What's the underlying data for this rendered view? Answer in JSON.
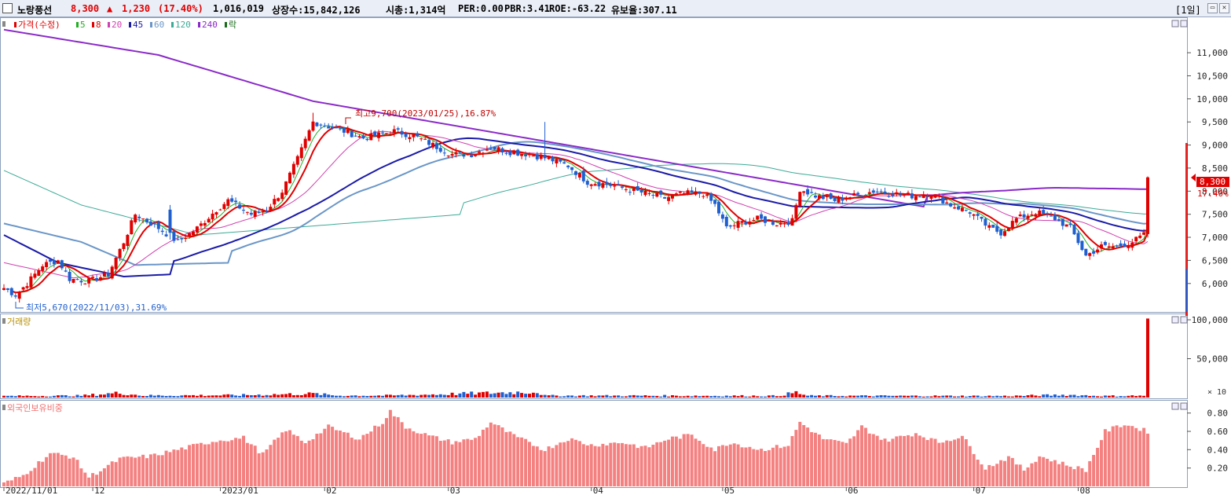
{
  "header": {
    "stock_name": "노랑풍선",
    "price": "8,300",
    "change_arrow": "▲",
    "change": "1,230",
    "change_pct": "(17.40%)",
    "volume": "1,016,019",
    "listed_shares": "상장수:15,842,126",
    "market_cap": "시총:1,314억",
    "per": "PER:0.00",
    "pbr": "PBR:3.41",
    "roe": "ROE:-63.22",
    "float_ratio": "유보율:307.11",
    "period": "[1일]",
    "minimize_glyph": "▭",
    "close_glyph": "✕"
  },
  "colors": {
    "up": "#e00000",
    "down": "#1f5fd0",
    "ma5": "#22b022",
    "ma8": "#e00000",
    "ma20": "#d040b0",
    "ma45": "#1a1aa8",
    "ma60": "#6a96c8",
    "ma120": "#3caa96",
    "ma240": "#8a2ac8",
    "foreign": "#f48080"
  },
  "price_panel": {
    "legend": [
      {
        "label": "가격(수정)",
        "color": "#e00000"
      },
      {
        "label": "5",
        "color": "#22b022"
      },
      {
        "label": "8",
        "color": "#e00000"
      },
      {
        "label": "20",
        "color": "#d040b0"
      },
      {
        "label": "45",
        "color": "#1a1aa8"
      },
      {
        "label": "60",
        "color": "#6a96c8"
      },
      {
        "label": "120",
        "color": "#3caa96"
      },
      {
        "label": "240",
        "color": "#8a2ac8"
      },
      {
        "label": "락",
        "color": "#1a6a1a"
      }
    ],
    "y_ticks": [
      "11,000",
      "10,500",
      "10,000",
      "9,500",
      "9,000",
      "8,500",
      "8,000",
      "7,500",
      "7,000",
      "6,500",
      "6,000"
    ],
    "high_annotation": "최고9,700(2023/01/25),16.87%",
    "low_annotation": "최저5,670(2022/11/03),31.69%",
    "price_tag": "8,300",
    "pct_tag": "17.40%"
  },
  "volume_panel": {
    "label": "거래량",
    "y_ticks": [
      "100,000",
      "50,000"
    ],
    "unit": "× 10"
  },
  "foreign_panel": {
    "label": "외국인보유비중",
    "y_ticks": [
      "0.80",
      "0.60",
      "0.40",
      "0.20"
    ]
  },
  "x_axis": [
    "2022/11/01",
    "12",
    "2023/01",
    "02",
    "03",
    "04",
    "05",
    "06",
    "07",
    "08"
  ],
  "chart_data": {
    "type": "candlestick",
    "anchors": {
      "close": [
        [
          0,
          5900
        ],
        [
          3,
          5750
        ],
        [
          6,
          6000
        ],
        [
          10,
          6400
        ],
        [
          14,
          6500
        ],
        [
          17,
          6100
        ],
        [
          22,
          6050
        ],
        [
          27,
          6200
        ],
        [
          31,
          6900
        ],
        [
          34,
          7500
        ],
        [
          40,
          7200
        ],
        [
          45,
          6900
        ],
        [
          50,
          7200
        ],
        [
          55,
          7600
        ],
        [
          58,
          7800
        ],
        [
          64,
          7500
        ],
        [
          68,
          7600
        ],
        [
          72,
          8000
        ],
        [
          76,
          8700
        ],
        [
          80,
          9500
        ],
        [
          84,
          9400
        ],
        [
          88,
          9300
        ],
        [
          93,
          9150
        ],
        [
          96,
          9200
        ],
        [
          101,
          9300
        ],
        [
          106,
          9200
        ],
        [
          111,
          9000
        ],
        [
          116,
          8800
        ],
        [
          121,
          8800
        ],
        [
          126,
          8950
        ],
        [
          131,
          8850
        ],
        [
          136,
          8800
        ],
        [
          141,
          8700
        ],
        [
          146,
          8550
        ],
        [
          151,
          8200
        ],
        [
          156,
          8150
        ],
        [
          161,
          8050
        ],
        [
          166,
          7950
        ],
        [
          171,
          7850
        ],
        [
          176,
          7950
        ],
        [
          181,
          7950
        ],
        [
          184,
          7700
        ],
        [
          187,
          7200
        ],
        [
          190,
          7300
        ],
        [
          195,
          7400
        ],
        [
          200,
          7300
        ],
        [
          204,
          7350
        ],
        [
          206,
          8050
        ],
        [
          210,
          7900
        ],
        [
          215,
          7800
        ],
        [
          220,
          7900
        ],
        [
          225,
          8000
        ],
        [
          230,
          7950
        ],
        [
          235,
          7900
        ],
        [
          240,
          7950
        ],
        [
          245,
          7700
        ],
        [
          250,
          7550
        ],
        [
          255,
          7200
        ],
        [
          258,
          7100
        ],
        [
          262,
          7400
        ],
        [
          267,
          7550
        ],
        [
          272,
          7400
        ],
        [
          276,
          7200
        ],
        [
          280,
          6600
        ],
        [
          284,
          6800
        ],
        [
          288,
          6800
        ],
        [
          292,
          6900
        ],
        [
          295,
          7050
        ],
        [
          296,
          8300
        ]
      ],
      "volume": [
        [
          0,
          2000
        ],
        [
          20,
          2500
        ],
        [
          30,
          6000
        ],
        [
          36,
          2600
        ],
        [
          60,
          3000
        ],
        [
          80,
          5000
        ],
        [
          86,
          2600
        ],
        [
          100,
          2600
        ],
        [
          138,
          7500
        ],
        [
          140,
          2500
        ],
        [
          200,
          2200
        ],
        [
          205,
          6500
        ],
        [
          208,
          2300
        ],
        [
          260,
          2000
        ],
        [
          275,
          3500
        ],
        [
          285,
          2000
        ],
        [
          295,
          2500
        ],
        [
          296,
          101600
        ]
      ],
      "foreign": [
        [
          0,
          0.03
        ],
        [
          5,
          0.12
        ],
        [
          12,
          0.36
        ],
        [
          18,
          0.32
        ],
        [
          22,
          0.1
        ],
        [
          30,
          0.3
        ],
        [
          38,
          0.33
        ],
        [
          47,
          0.42
        ],
        [
          55,
          0.5
        ],
        [
          62,
          0.53
        ],
        [
          67,
          0.35
        ],
        [
          73,
          0.62
        ],
        [
          78,
          0.48
        ],
        [
          84,
          0.65
        ],
        [
          92,
          0.52
        ],
        [
          98,
          0.7
        ],
        [
          100,
          0.82
        ],
        [
          104,
          0.65
        ],
        [
          110,
          0.55
        ],
        [
          116,
          0.48
        ],
        [
          122,
          0.52
        ],
        [
          126,
          0.7
        ],
        [
          132,
          0.55
        ],
        [
          140,
          0.4
        ],
        [
          146,
          0.52
        ],
        [
          152,
          0.45
        ],
        [
          160,
          0.48
        ],
        [
          166,
          0.42
        ],
        [
          172,
          0.52
        ],
        [
          178,
          0.56
        ],
        [
          184,
          0.4
        ],
        [
          188,
          0.48
        ],
        [
          196,
          0.4
        ],
        [
          203,
          0.45
        ],
        [
          206,
          0.7
        ],
        [
          212,
          0.52
        ],
        [
          218,
          0.46
        ],
        [
          222,
          0.65
        ],
        [
          228,
          0.5
        ],
        [
          236,
          0.58
        ],
        [
          242,
          0.48
        ],
        [
          248,
          0.55
        ],
        [
          254,
          0.2
        ],
        [
          260,
          0.32
        ],
        [
          264,
          0.18
        ],
        [
          268,
          0.33
        ],
        [
          276,
          0.22
        ],
        [
          280,
          0.18
        ],
        [
          285,
          0.6
        ],
        [
          290,
          0.68
        ],
        [
          296,
          0.6
        ]
      ]
    },
    "ma_start": {
      "ma5": 4,
      "ma8": 7,
      "ma20": 19,
      "ma45": 44,
      "ma60": 59,
      "ma120": 119,
      "ma240": 239
    },
    "pre_history": {
      "ma45": [
        [
          0,
          7050
        ],
        [
          14,
          6450
        ],
        [
          31,
          6150
        ],
        [
          44,
          6200
        ]
      ],
      "ma60": [
        [
          0,
          7300
        ],
        [
          20,
          6900
        ],
        [
          34,
          6400
        ],
        [
          59,
          6450
        ]
      ],
      "ma120": [
        [
          0,
          8450
        ],
        [
          20,
          7700
        ],
        [
          50,
          7050
        ],
        [
          119,
          7500
        ]
      ],
      "ma240": [
        [
          0,
          11500
        ],
        [
          40,
          10950
        ],
        [
          80,
          9950
        ],
        [
          239,
          7650
        ]
      ],
      "ma20": [
        [
          0,
          6450
        ],
        [
          19,
          6100
        ]
      ]
    },
    "price_range": [
      5400,
      11700
    ],
    "volume_range": [
      0,
      105000
    ],
    "foreign_range": [
      0,
      0.9
    ],
    "last_close": 8300
  }
}
